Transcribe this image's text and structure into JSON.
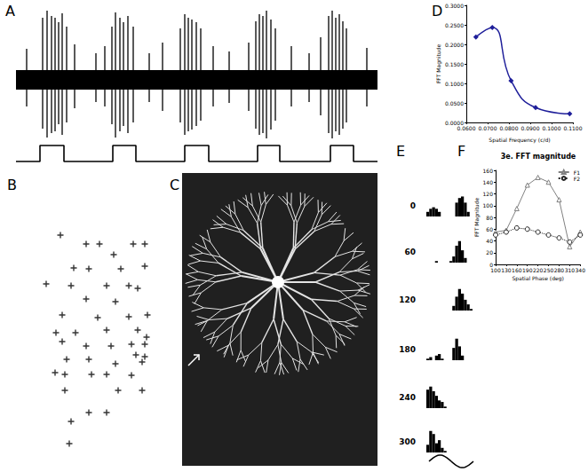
{
  "chart_data": [
    {
      "label": "A",
      "type": "spike_trace",
      "color": "#000000",
      "tick_labels": false,
      "xlim": [
        0,
        407
      ],
      "ylim": [
        -85,
        85
      ],
      "spikes": {
        "x": [
          12,
          30,
          35,
          40,
          44,
          48,
          52,
          57,
          66,
          90,
          100,
          108,
          112,
          117,
          121,
          126,
          132,
          150,
          165,
          185,
          190,
          194,
          198,
          203,
          208,
          222,
          240,
          262,
          270,
          274,
          278,
          282,
          287,
          292,
          310,
          330,
          343,
          352,
          356,
          360,
          364,
          368,
          372,
          395
        ],
        "high": [
          35,
          70,
          78,
          72,
          70,
          65,
          75,
          60,
          40,
          30,
          38,
          60,
          76,
          70,
          65,
          72,
          60,
          30,
          42,
          58,
          74,
          70,
          68,
          65,
          58,
          38,
          32,
          42,
          66,
          74,
          72,
          78,
          68,
          58,
          38,
          30,
          48,
          72,
          78,
          70,
          74,
          66,
          58,
          36
        ],
        "low": [
          -30,
          -55,
          -65,
          -60,
          -58,
          -50,
          -62,
          -48,
          -32,
          -25,
          -30,
          -50,
          -65,
          -58,
          -52,
          -60,
          -48,
          -25,
          -35,
          -48,
          -62,
          -58,
          -56,
          -52,
          -46,
          -30,
          -26,
          -35,
          -55,
          -62,
          -60,
          -66,
          -56,
          -46,
          -30,
          -25,
          -40,
          -60,
          -66,
          -58,
          -62,
          -55,
          -48,
          -30
        ]
      },
      "stimulus": {
        "x": [
          0,
          27,
          27,
          54,
          54,
          109,
          109,
          135,
          135,
          190,
          190,
          217,
          217,
          272,
          272,
          297,
          297,
          354,
          354,
          380,
          380,
          407
        ],
        "values": [
          0,
          0,
          1,
          1,
          0,
          0,
          1,
          1,
          0,
          0,
          1,
          1,
          0,
          0,
          1,
          1,
          0,
          0,
          1,
          1,
          0,
          0
        ],
        "ylim": [
          0,
          1
        ]
      }
    },
    {
      "label": "B",
      "type": "scatter",
      "marker": "cross",
      "color": "#000000",
      "tick_labels": false,
      "xlim": [
        40,
        180
      ],
      "ylim": [
        0,
        260
      ],
      "x": [
        68,
        97,
        112,
        150,
        163,
        128,
        83,
        100,
        136,
        163,
        52,
        80,
        120,
        145,
        155,
        97,
        130,
        70,
        110,
        145,
        166,
        63,
        85,
        120,
        155,
        165,
        70,
        97,
        125,
        148,
        163,
        153,
        163,
        75,
        100,
        130,
        160,
        62,
        73,
        103,
        120,
        148,
        73,
        133,
        160,
        100,
        120,
        80,
        78
      ],
      "values": [
        250,
        240,
        240,
        240,
        240,
        228,
        213,
        212,
        212,
        215,
        195,
        193,
        193,
        193,
        190,
        178,
        175,
        160,
        157,
        158,
        160,
        140,
        140,
        143,
        143,
        135,
        130,
        125,
        125,
        127,
        127,
        115,
        113,
        110,
        110,
        105,
        107,
        95,
        93,
        93,
        93,
        92,
        75,
        75,
        75,
        50,
        50,
        40,
        15
      ]
    },
    {
      "label": "D",
      "type": "line",
      "color": "#1f1f9a",
      "marker": "diamond",
      "line_style": "solid",
      "grid": false,
      "x_label": "Spatial Frequency (c/d)",
      "y_label": "FFT Magnitude",
      "xlim": [
        0.06,
        0.11
      ],
      "xticks": [
        {
          "value": 0.06,
          "label": "0.0600"
        },
        {
          "value": 0.07,
          "label": "0.0700"
        },
        {
          "value": 0.08,
          "label": "0.0800"
        },
        {
          "value": 0.09,
          "label": "0.0900"
        },
        {
          "value": 0.1,
          "label": "0.1000"
        },
        {
          "value": 0.11,
          "label": "0.1100"
        }
      ],
      "ylim": [
        0,
        0.3
      ],
      "yticks": [
        {
          "value": 0,
          "label": "0.0000"
        },
        {
          "value": 0.05,
          "label": "0.0500"
        },
        {
          "value": 0.1,
          "label": "0.1000"
        },
        {
          "value": 0.15,
          "label": "0.1500"
        },
        {
          "value": 0.2,
          "label": "0.2000"
        },
        {
          "value": 0.25,
          "label": "0.2500"
        },
        {
          "value": 0.3,
          "label": "0.3000"
        }
      ],
      "x": [
        0.0645,
        0.0722,
        0.081,
        0.0925,
        0.1085
      ],
      "values": [
        0.219,
        0.243,
        0.107,
        0.038,
        0.022
      ]
    },
    {
      "label": "E",
      "type": "histogram",
      "color": "#000000",
      "tick_labels": false,
      "bins": [
        0,
        1,
        2,
        3,
        4,
        5,
        6,
        7,
        8,
        9,
        10,
        11,
        12,
        13,
        14,
        15,
        16
      ],
      "xlim": [
        0,
        16
      ],
      "ylim": [
        0,
        15
      ],
      "rows": [
        {
          "name": "0",
          "counts": [
            3,
            5,
            6,
            5,
            3,
            0,
            0,
            0,
            0,
            0,
            9,
            12,
            13,
            9,
            3,
            0
          ]
        },
        {
          "name": "60",
          "counts": [
            0,
            0,
            0,
            1,
            0,
            0,
            0,
            0,
            1,
            4,
            11,
            14,
            8,
            3,
            0,
            0
          ]
        },
        {
          "name": "120",
          "counts": [
            0,
            0,
            0,
            0,
            0,
            0,
            0,
            0,
            0,
            3,
            9,
            14,
            11,
            7,
            4,
            1
          ]
        },
        {
          "name": "180",
          "counts": [
            1,
            2,
            0,
            3,
            4,
            1,
            0,
            0,
            0,
            8,
            14,
            9,
            3,
            0,
            0,
            0
          ]
        },
        {
          "name": "240",
          "counts": [
            12,
            14,
            11,
            8,
            5,
            4,
            1,
            0,
            0,
            0,
            0,
            0,
            0,
            0,
            0,
            0
          ]
        },
        {
          "name": "300",
          "counts": [
            5,
            14,
            12,
            6,
            8,
            3,
            1,
            0,
            0,
            0,
            0,
            0,
            0,
            0,
            0,
            0
          ]
        }
      ]
    },
    {
      "label": "F",
      "type": "line",
      "title": "3e. FFT magnitude",
      "legend": "top-right",
      "grid": false,
      "x_label": "Spatial Phase (deg)",
      "y_label": "FFT Magnitude",
      "xlim": [
        100,
        340
      ],
      "xticks": [
        100,
        130,
        160,
        190,
        220,
        250,
        280,
        310,
        340
      ],
      "ylim": [
        0,
        160
      ],
      "yticks": [
        0,
        20,
        40,
        60,
        80,
        100,
        120,
        140,
        160
      ],
      "x": [
        100,
        130,
        160,
        190,
        220,
        250,
        280,
        310,
        340
      ],
      "series": [
        {
          "name": "F1",
          "color": "#808080",
          "marker": "triangle",
          "line_style": "solid",
          "values": [
            55,
            58,
            95,
            135,
            148,
            140,
            110,
            30,
            55
          ]
        },
        {
          "name": "F2",
          "color": "#222222",
          "marker": "circle",
          "line_style": "dotted",
          "values": [
            50,
            55,
            62,
            60,
            55,
            50,
            45,
            38,
            50
          ]
        }
      ]
    }
  ],
  "image": {
    "label": "C"
  }
}
